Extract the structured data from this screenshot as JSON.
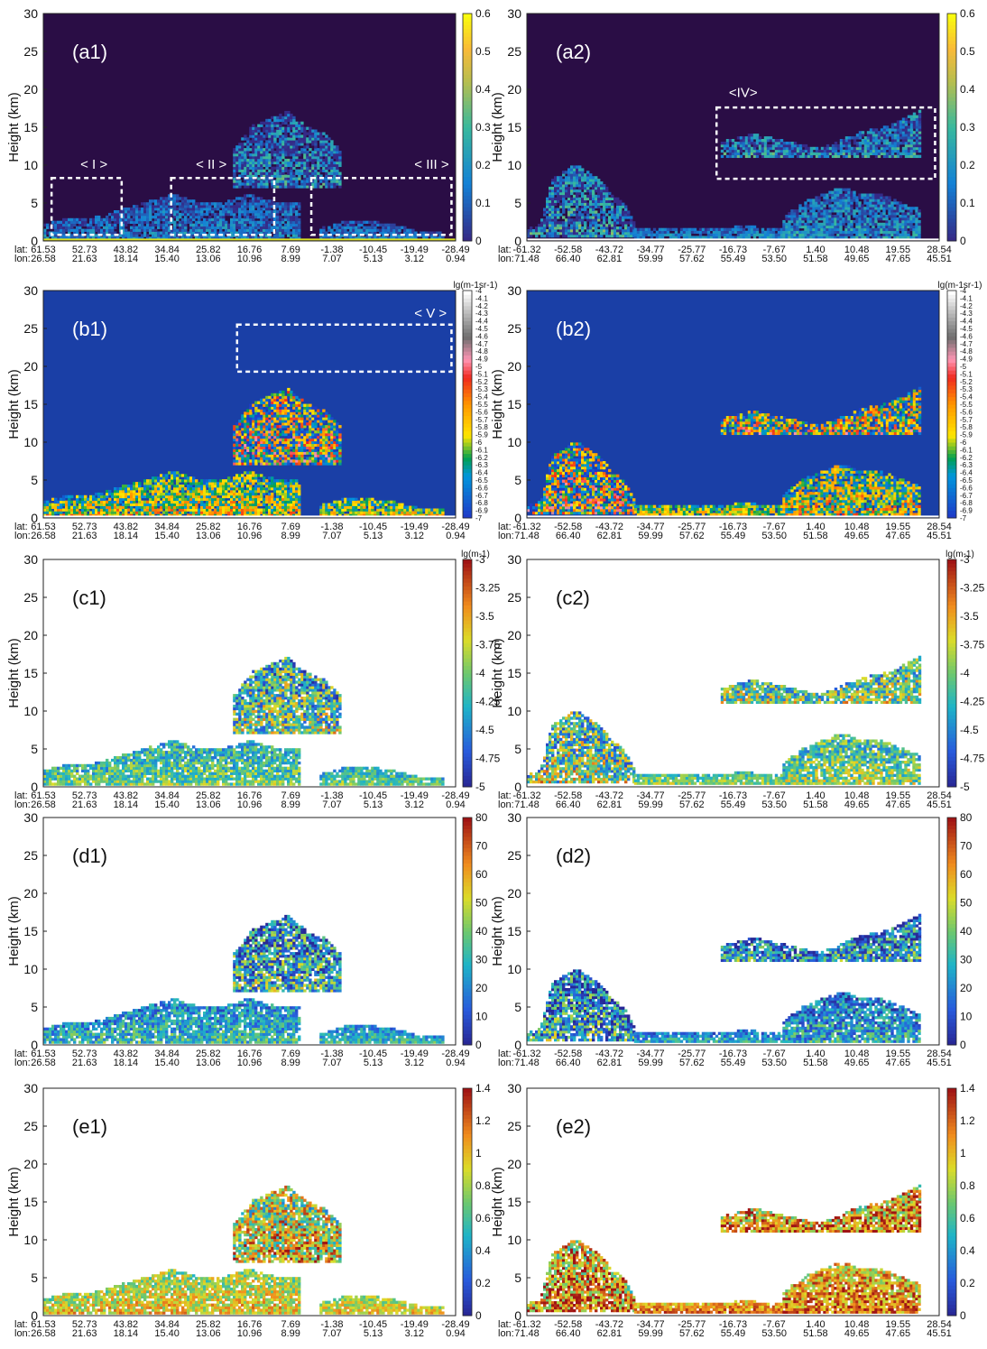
{
  "figure": {
    "columns": {
      "left": {
        "lat": [
          "61.53",
          "52.73",
          "43.82",
          "34.84",
          "25.82",
          "16.76",
          "7.69",
          "-1.38",
          "-10.45",
          "-19.49",
          "-28.49"
        ],
        "lon": [
          "26.58",
          "21.63",
          "18.14",
          "15.40",
          "13.06",
          "10.96",
          "8.99",
          "7.07",
          "5.13",
          "3.12",
          "0.94"
        ]
      },
      "right": {
        "lat": [
          "-61.32",
          "-52.58",
          "-43.72",
          "-34.77",
          "-25.77",
          "-16.73",
          "-7.67",
          "1.40",
          "10.48",
          "19.55",
          "28.54"
        ],
        "lon": [
          "71.48",
          "66.40",
          "62.81",
          "59.99",
          "57.62",
          "55.49",
          "53.50",
          "51.58",
          "49.65",
          "47.65",
          "45.51"
        ]
      }
    },
    "lat_prefix": "lat:",
    "lon_prefix": "lon:",
    "ylabel": "Height (km)",
    "yticks": [
      "0",
      "5",
      "10",
      "15",
      "20",
      "25",
      "30"
    ]
  },
  "chart_data": [
    {
      "id": "a1",
      "type": "heatmap",
      "panel_label": "(a1)",
      "column": "left",
      "background": "#2a0d45",
      "ylim": [
        0,
        30
      ],
      "colorbar": {
        "ticks": [
          "0",
          "0.1",
          "0.2",
          "0.3",
          "0.4",
          "0.5",
          "0.6"
        ],
        "unit": "",
        "scheme": "parula"
      },
      "boxes": [
        {
          "label": "< I >"
        },
        {
          "label": "< II >"
        },
        {
          "label": "< III >"
        }
      ]
    },
    {
      "id": "a2",
      "type": "heatmap",
      "panel_label": "(a2)",
      "column": "right",
      "background": "#2a0d45",
      "ylim": [
        0,
        30
      ],
      "colorbar": {
        "ticks": [
          "0",
          "0.1",
          "0.2",
          "0.3",
          "0.4",
          "0.5",
          "0.6"
        ],
        "unit": "",
        "scheme": "parula"
      },
      "boxes": [
        {
          "label": "<IV>"
        }
      ]
    },
    {
      "id": "b1",
      "type": "heatmap",
      "panel_label": "(b1)",
      "column": "left",
      "background": "#1a3fa6",
      "ylim": [
        0,
        30
      ],
      "colorbar": {
        "ticks": [
          "-4",
          "-4.1",
          "-4.2",
          "-4.3",
          "-4.4",
          "-4.5",
          "-4.6",
          "-4.7",
          "-4.8",
          "-4.9",
          "-5",
          "-5.1",
          "-5.2",
          "-5.3",
          "-5.4",
          "-5.5",
          "-5.6",
          "-5.7",
          "-5.8",
          "-5.9",
          "-6",
          "-6.1",
          "-6.2",
          "-6.3",
          "-6.4",
          "-6.5",
          "-6.6",
          "-6.7",
          "-6.8",
          "-6.9",
          "-7"
        ],
        "unit": "lg(m-1sr-1)",
        "scheme": "calipso"
      },
      "boxes": [
        {
          "label": "< V >"
        }
      ]
    },
    {
      "id": "b2",
      "type": "heatmap",
      "panel_label": "(b2)",
      "column": "right",
      "background": "#1a3fa6",
      "ylim": [
        0,
        30
      ],
      "colorbar": {
        "ticks": [
          "-4",
          "-4.1",
          "-4.2",
          "-4.3",
          "-4.4",
          "-4.5",
          "-4.6",
          "-4.7",
          "-4.8",
          "-4.9",
          "-5",
          "-5.1",
          "-5.2",
          "-5.3",
          "-5.4",
          "-5.5",
          "-5.6",
          "-5.7",
          "-5.8",
          "-5.9",
          "-6",
          "-6.1",
          "-6.2",
          "-6.3",
          "-6.4",
          "-6.5",
          "-6.6",
          "-6.7",
          "-6.8",
          "-6.9",
          "-7"
        ],
        "unit": "lg(m-1sr-1)",
        "scheme": "calipso"
      },
      "boxes": []
    },
    {
      "id": "c1",
      "type": "heatmap",
      "panel_label": "(c1)",
      "column": "left",
      "background": "#ffffff",
      "ylim": [
        0,
        30
      ],
      "colorbar": {
        "ticks": [
          "-5",
          "-4.75",
          "-4.5",
          "-4.25",
          "-4",
          "-3.75",
          "-3.5",
          "-3.25",
          "-3"
        ],
        "unit": "lg(m-1)",
        "scheme": "jet"
      },
      "boxes": []
    },
    {
      "id": "c2",
      "type": "heatmap",
      "panel_label": "(c2)",
      "column": "right",
      "background": "#ffffff",
      "ylim": [
        0,
        30
      ],
      "colorbar": {
        "ticks": [
          "-5",
          "-4.75",
          "-4.5",
          "-4.25",
          "-4",
          "-3.75",
          "-3.5",
          "-3.25",
          "-3"
        ],
        "unit": "lg(m-1)",
        "scheme": "jet"
      },
      "boxes": []
    },
    {
      "id": "d1",
      "type": "heatmap",
      "panel_label": "(d1)",
      "column": "left",
      "background": "#ffffff",
      "ylim": [
        0,
        30
      ],
      "colorbar": {
        "ticks": [
          "0",
          "10",
          "20",
          "30",
          "40",
          "50",
          "60",
          "70",
          "80"
        ],
        "unit": "",
        "scheme": "jet"
      },
      "boxes": []
    },
    {
      "id": "d2",
      "type": "heatmap",
      "panel_label": "(d2)",
      "column": "right",
      "background": "#ffffff",
      "ylim": [
        0,
        30
      ],
      "colorbar": {
        "ticks": [
          "0",
          "10",
          "20",
          "30",
          "40",
          "50",
          "60",
          "70",
          "80"
        ],
        "unit": "",
        "scheme": "jet"
      },
      "boxes": []
    },
    {
      "id": "e1",
      "type": "heatmap",
      "panel_label": "(e1)",
      "column": "left",
      "background": "#ffffff",
      "ylim": [
        0,
        30
      ],
      "colorbar": {
        "ticks": [
          "0",
          "0.2",
          "0.4",
          "0.6",
          "0.8",
          "1",
          "1.2",
          "1.4"
        ],
        "unit": "",
        "scheme": "jet"
      },
      "boxes": []
    },
    {
      "id": "e2",
      "type": "heatmap",
      "panel_label": "(e2)",
      "column": "right",
      "background": "#ffffff",
      "ylim": [
        0,
        30
      ],
      "colorbar": {
        "ticks": [
          "0",
          "0.2",
          "0.4",
          "0.6",
          "0.8",
          "1",
          "1.2",
          "1.4"
        ],
        "unit": "",
        "scheme": "jet"
      },
      "boxes": []
    }
  ]
}
